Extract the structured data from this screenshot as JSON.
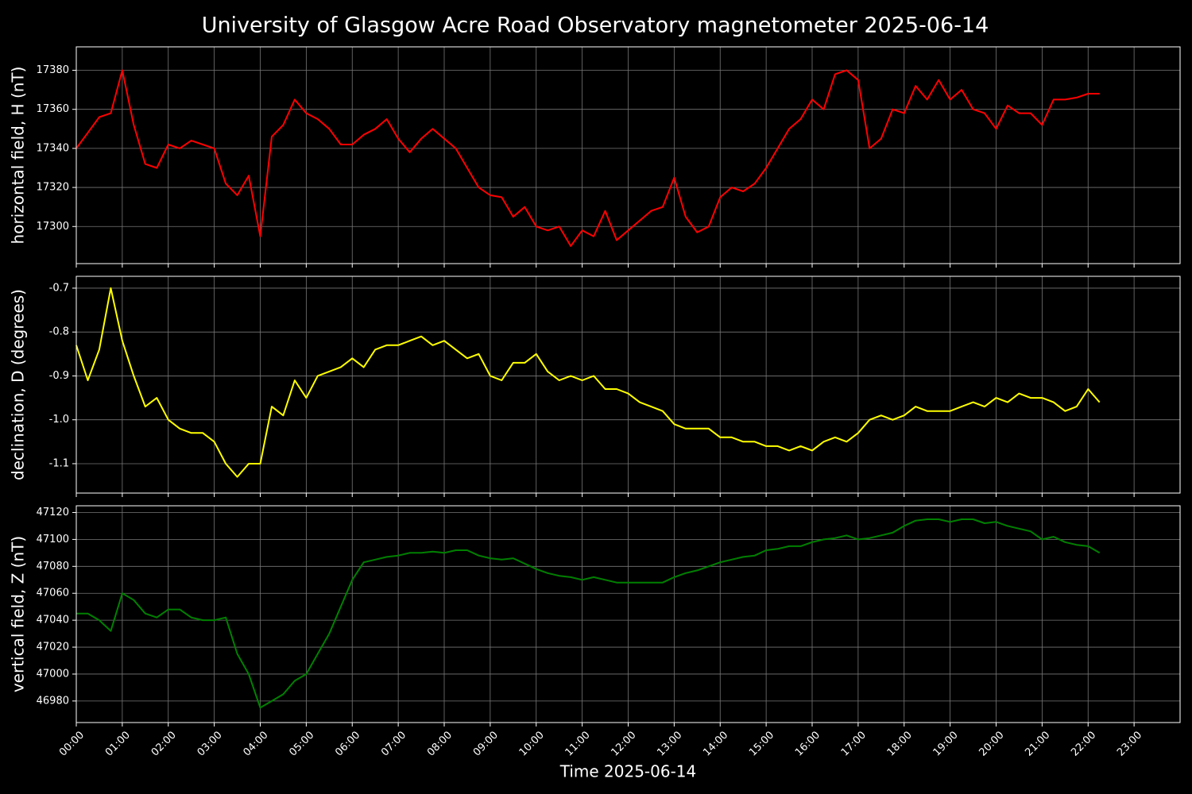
{
  "title": "University of Glasgow Acre Road Observatory magnetometer 2025-06-14",
  "chart_data": [
    {
      "type": "line",
      "ylabel": "horizontal field, H (nT)",
      "color": "#ff0000",
      "grid": true,
      "x": [
        0,
        0.25,
        0.5,
        0.75,
        1,
        1.25,
        1.5,
        1.75,
        2,
        2.25,
        2.5,
        2.75,
        3,
        3.25,
        3.5,
        3.75,
        4,
        4.25,
        4.5,
        4.75,
        5,
        5.25,
        5.5,
        5.75,
        6,
        6.25,
        6.5,
        6.75,
        7,
        7.25,
        7.5,
        7.75,
        8,
        8.25,
        8.5,
        8.75,
        9,
        9.25,
        9.5,
        9.75,
        10,
        10.25,
        10.5,
        10.75,
        11,
        11.25,
        11.5,
        11.75,
        12,
        12.25,
        12.5,
        12.75,
        13,
        13.25,
        13.5,
        13.75,
        14,
        14.25,
        14.5,
        14.75,
        15,
        15.25,
        15.5,
        15.75,
        16,
        16.25,
        16.5,
        16.75,
        17,
        17.25,
        17.5,
        17.75,
        18,
        18.25,
        18.5,
        18.75,
        19,
        19.25,
        19.5,
        19.75,
        20,
        20.25,
        20.5,
        20.75,
        21,
        21.25,
        21.5,
        21.75,
        22,
        22.25
      ],
      "values": [
        17340,
        17348,
        17356,
        17358,
        17380,
        17352,
        17332,
        17330,
        17342,
        17340,
        17344,
        17342,
        17340,
        17322,
        17316,
        17326,
        17295,
        17346,
        17352,
        17365,
        17358,
        17355,
        17350,
        17342,
        17342,
        17347,
        17350,
        17355,
        17345,
        17338,
        17345,
        17350,
        17345,
        17340,
        17330,
        17320,
        17316,
        17315,
        17305,
        17310,
        17300,
        17298,
        17300,
        17290,
        17298,
        17295,
        17308,
        17293,
        17298,
        17303,
        17308,
        17310,
        17325,
        17305,
        17297,
        17300,
        17315,
        17320,
        17318,
        17322,
        17330,
        17340,
        17350,
        17355,
        17365,
        17360,
        17378,
        17380,
        17375,
        17340,
        17345,
        17360,
        17358,
        17372,
        17365,
        17375,
        17365,
        17370,
        17360,
        17358,
        17350,
        17362,
        17358,
        17358,
        17352,
        17365,
        17365,
        17366,
        17368,
        17368
      ],
      "ylim": [
        17281,
        17392
      ],
      "yticks": [
        17300,
        17320,
        17340,
        17360,
        17380
      ]
    },
    {
      "type": "line",
      "ylabel": "declination, D (degrees)",
      "color": "#ffff00",
      "grid": true,
      "x": [
        0,
        0.25,
        0.5,
        0.75,
        1,
        1.25,
        1.5,
        1.75,
        2,
        2.25,
        2.5,
        2.75,
        3,
        3.25,
        3.5,
        3.75,
        4,
        4.25,
        4.5,
        4.75,
        5,
        5.25,
        5.5,
        5.75,
        6,
        6.25,
        6.5,
        6.75,
        7,
        7.25,
        7.5,
        7.75,
        8,
        8.25,
        8.5,
        8.75,
        9,
        9.25,
        9.5,
        9.75,
        10,
        10.25,
        10.5,
        10.75,
        11,
        11.25,
        11.5,
        11.75,
        12,
        12.25,
        12.5,
        12.75,
        13,
        13.25,
        13.5,
        13.75,
        14,
        14.25,
        14.5,
        14.75,
        15,
        15.25,
        15.5,
        15.75,
        16,
        16.25,
        16.5,
        16.75,
        17,
        17.25,
        17.5,
        17.75,
        18,
        18.25,
        18.5,
        18.75,
        19,
        19.25,
        19.5,
        19.75,
        20,
        20.25,
        20.5,
        20.75,
        21,
        21.25,
        21.5,
        21.75,
        22,
        22.25
      ],
      "values": [
        -0.83,
        -0.91,
        -0.84,
        -0.7,
        -0.82,
        -0.9,
        -0.97,
        -0.95,
        -1.0,
        -1.02,
        -1.03,
        -1.03,
        -1.05,
        -1.1,
        -1.13,
        -1.1,
        -1.1,
        -0.97,
        -0.99,
        -0.91,
        -0.95,
        -0.9,
        -0.89,
        -0.88,
        -0.86,
        -0.88,
        -0.84,
        -0.83,
        -0.83,
        -0.82,
        -0.81,
        -0.83,
        -0.82,
        -0.84,
        -0.86,
        -0.85,
        -0.9,
        -0.91,
        -0.87,
        -0.87,
        -0.85,
        -0.89,
        -0.91,
        -0.9,
        -0.91,
        -0.9,
        -0.93,
        -0.93,
        -0.94,
        -0.96,
        -0.97,
        -0.98,
        -1.01,
        -1.02,
        -1.02,
        -1.02,
        -1.04,
        -1.04,
        -1.05,
        -1.05,
        -1.06,
        -1.06,
        -1.07,
        -1.06,
        -1.07,
        -1.05,
        -1.04,
        -1.05,
        -1.03,
        -1.0,
        -0.99,
        -1.0,
        -0.99,
        -0.97,
        -0.98,
        -0.98,
        -0.98,
        -0.97,
        -0.96,
        -0.97,
        -0.95,
        -0.96,
        -0.94,
        -0.95,
        -0.95,
        -0.96,
        -0.98,
        -0.97,
        -0.93,
        -0.96
      ],
      "ylim": [
        -1.167,
        -0.673
      ],
      "yticks": [
        -1.1,
        {
          "value": -1.0,
          "label": "-1.0"
        },
        -0.9,
        -0.8,
        -0.7
      ]
    },
    {
      "type": "line",
      "ylabel": "vertical field, Z (nT)",
      "color": "#008000",
      "grid": true,
      "xlabel": "Time 2025-06-14",
      "x": [
        0,
        0.25,
        0.5,
        0.75,
        1,
        1.25,
        1.5,
        1.75,
        2,
        2.25,
        2.5,
        2.75,
        3,
        3.25,
        3.5,
        3.75,
        4,
        4.25,
        4.5,
        4.75,
        5,
        5.25,
        5.5,
        5.75,
        6,
        6.25,
        6.5,
        6.75,
        7,
        7.25,
        7.5,
        7.75,
        8,
        8.25,
        8.5,
        8.75,
        9,
        9.25,
        9.5,
        9.75,
        10,
        10.25,
        10.5,
        10.75,
        11,
        11.25,
        11.5,
        11.75,
        12,
        12.25,
        12.5,
        12.75,
        13,
        13.25,
        13.5,
        13.75,
        14,
        14.25,
        14.5,
        14.75,
        15,
        15.25,
        15.5,
        15.75,
        16,
        16.25,
        16.5,
        16.75,
        17,
        17.25,
        17.5,
        17.75,
        18,
        18.25,
        18.5,
        18.75,
        19,
        19.25,
        19.5,
        19.75,
        20,
        20.25,
        20.5,
        20.75,
        21,
        21.25,
        21.5,
        21.75,
        22,
        22.25
      ],
      "values": [
        47045,
        47045,
        47040,
        47032,
        47060,
        47055,
        47045,
        47042,
        47048,
        47048,
        47042,
        47040,
        47040,
        47042,
        47015,
        47000,
        46975,
        46980,
        46985,
        46995,
        47000,
        47015,
        47030,
        47050,
        47070,
        47083,
        47085,
        47087,
        47088,
        47090,
        47090,
        47091,
        47090,
        47092,
        47092,
        47088,
        47086,
        47085,
        47086,
        47082,
        47078,
        47075,
        47073,
        47072,
        47070,
        47072,
        47070,
        47068,
        47068,
        47068,
        47068,
        47068,
        47072,
        47075,
        47077,
        47080,
        47083,
        47085,
        47087,
        47088,
        47092,
        47093,
        47095,
        47095,
        47098,
        47100,
        47101,
        47103,
        47100,
        47101,
        47103,
        47105,
        47110,
        47114,
        47115,
        47115,
        47113,
        47115,
        47115,
        47112,
        47113,
        47110,
        47108,
        47106,
        47100,
        47102,
        47098,
        47096,
        47095,
        47090
      ],
      "ylim": [
        46964,
        47125
      ],
      "yticks": [
        46980,
        47000,
        47020,
        47040,
        47060,
        47080,
        47100,
        47120
      ],
      "xlim": [
        0,
        24
      ],
      "xticks": [
        {
          "value": 0,
          "label": "00:00"
        },
        {
          "value": 1,
          "label": "01:00"
        },
        {
          "value": 2,
          "label": "02:00"
        },
        {
          "value": 3,
          "label": "03:00"
        },
        {
          "value": 4,
          "label": "04:00"
        },
        {
          "value": 5,
          "label": "05:00"
        },
        {
          "value": 6,
          "label": "06:00"
        },
        {
          "value": 7,
          "label": "07:00"
        },
        {
          "value": 8,
          "label": "08:00"
        },
        {
          "value": 9,
          "label": "09:00"
        },
        {
          "value": 10,
          "label": "10:00"
        },
        {
          "value": 11,
          "label": "11:00"
        },
        {
          "value": 12,
          "label": "12:00"
        },
        {
          "value": 13,
          "label": "13:00"
        },
        {
          "value": 14,
          "label": "14:00"
        },
        {
          "value": 15,
          "label": "15:00"
        },
        {
          "value": 16,
          "label": "16:00"
        },
        {
          "value": 17,
          "label": "17:00"
        },
        {
          "value": 18,
          "label": "18:00"
        },
        {
          "value": 19,
          "label": "19:00"
        },
        {
          "value": 20,
          "label": "20:00"
        },
        {
          "value": 21,
          "label": "21:00"
        },
        {
          "value": 22,
          "label": "22:00"
        },
        {
          "value": 23,
          "label": "23:00"
        }
      ]
    }
  ]
}
